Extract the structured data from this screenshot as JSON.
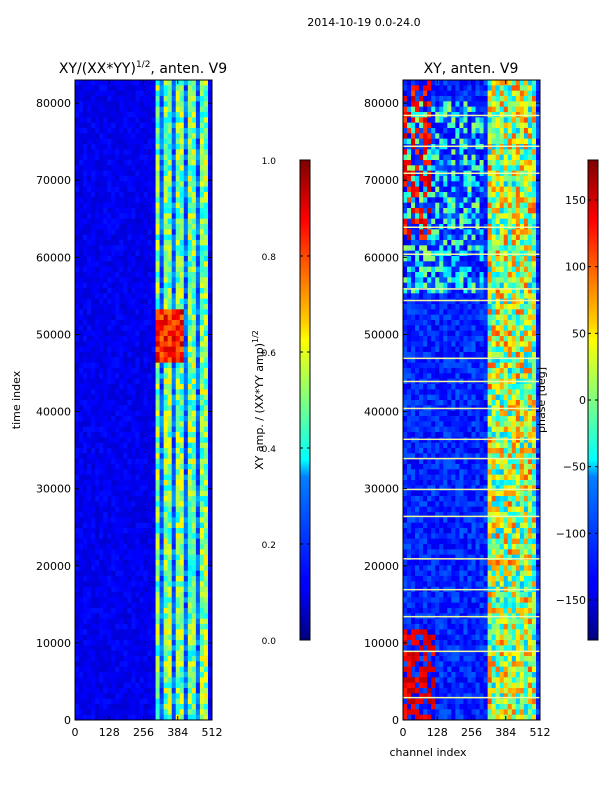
{
  "figure": {
    "suptitle": "2014-10-19 0.0-24.0"
  },
  "chart_data": [
    {
      "type": "heatmap",
      "title": "XY/(XX*YY)^1/2, anten. V9",
      "title_main": "XY/(XX*YY)",
      "title_sup": "1/2",
      "title_tail": ", anten. V9",
      "xlabel": "",
      "ylabel": "time index",
      "xlim": [
        0,
        512
      ],
      "ylim": [
        0,
        83000
      ],
      "xticks": [
        0,
        128,
        256,
        384,
        512
      ],
      "yticks": [
        0,
        10000,
        20000,
        30000,
        40000,
        50000,
        60000,
        70000,
        80000
      ],
      "colormap": "jet",
      "colorbar": {
        "label": "XY amp. / (XX*YY amp)^1/2",
        "label_main": "XY amp. / (XX*YY amp)",
        "label_sup": "1/2",
        "vmin": 0.0,
        "vmax": 1.0,
        "ticks": [
          "0.0",
          "0.2",
          "0.4",
          "0.6",
          "0.8",
          "1.0"
        ]
      }
    },
    {
      "type": "heatmap",
      "title": "XY, anten. V9",
      "xlabel": "channel index",
      "ylabel": "",
      "xlim": [
        0,
        512
      ],
      "ylim": [
        0,
        83000
      ],
      "xticks": [
        0,
        128,
        256,
        384,
        512
      ],
      "yticks": [
        0,
        10000,
        20000,
        30000,
        40000,
        50000,
        60000,
        70000,
        80000
      ],
      "colormap": "jet",
      "colorbar": {
        "label": "phase [deg]",
        "vmin": -180,
        "vmax": 180,
        "ticks": [
          "−150",
          "−100",
          "−50",
          "0",
          "50",
          "100",
          "150"
        ]
      }
    }
  ]
}
